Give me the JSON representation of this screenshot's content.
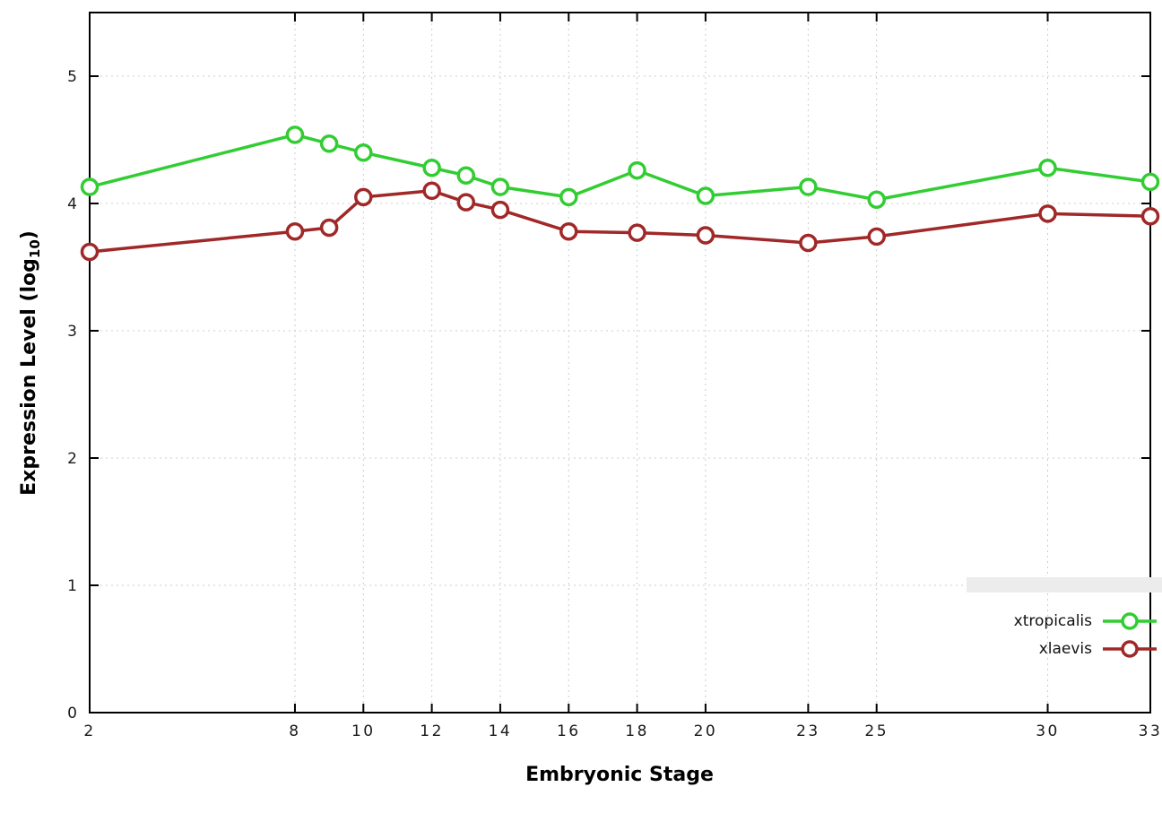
{
  "chart_data": {
    "type": "line",
    "title": "",
    "xlabel": "Embryonic Stage",
    "ylabel": "Expression Level (log10)",
    "ylabel_parts": {
      "prefix": "Expression Level (log",
      "sub": "10",
      "suffix": ")"
    },
    "x": [
      2,
      8,
      9,
      10,
      12,
      13,
      14,
      16,
      18,
      20,
      23,
      25,
      30,
      33
    ],
    "x_ticks": [
      2,
      8,
      10,
      12,
      14,
      16,
      18,
      20,
      23,
      25,
      30,
      33
    ],
    "y_ticks": [
      0,
      1,
      2,
      3,
      4,
      5
    ],
    "xlim": [
      2,
      33
    ],
    "ylim": [
      0,
      5.5
    ],
    "grid": true,
    "legend_position": "bottom-right",
    "series": [
      {
        "name": "xtropicalis",
        "color": "#32cd32",
        "values": [
          4.13,
          4.54,
          4.47,
          4.4,
          4.28,
          4.22,
          4.13,
          4.05,
          4.26,
          4.06,
          4.13,
          4.03,
          4.28,
          4.17
        ]
      },
      {
        "name": "xlaevis",
        "color": "#a02828",
        "values": [
          3.62,
          3.78,
          3.81,
          4.05,
          4.1,
          4.01,
          3.95,
          3.78,
          3.77,
          3.75,
          3.69,
          3.74,
          3.92,
          3.9
        ]
      }
    ]
  }
}
